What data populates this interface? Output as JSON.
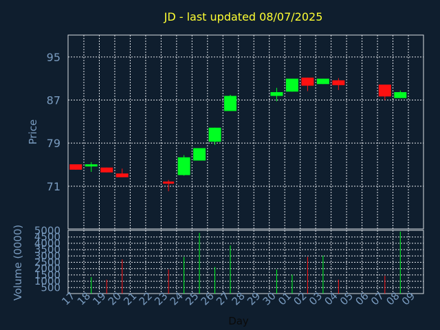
{
  "chart_data": {
    "type": "candlestick",
    "title": "JD - last updated 08/07/2025",
    "ylabel": "Price",
    "volume_label": "Volume (0000)",
    "xlabel": "Day",
    "ylim": [
      63,
      99
    ],
    "yticks": [
      71,
      79,
      87,
      95
    ],
    "volume_ylim": [
      0,
      5000
    ],
    "volume_ticks": [
      500,
      1000,
      1500,
      2000,
      2500,
      3000,
      3500,
      4000,
      4500,
      5000
    ],
    "x_ticks": [
      "17",
      "18",
      "19",
      "20",
      "21",
      "22",
      "23",
      "24",
      "25",
      "26",
      "27",
      "28",
      "29",
      "30",
      "01",
      "02",
      "03",
      "04",
      "05",
      "06",
      "07",
      "08",
      "09"
    ],
    "up_color": "#00ff22",
    "down_color": "#ff1111",
    "grid": true,
    "candles": [
      {
        "day": "17",
        "open": 75.0,
        "close": 74.0,
        "high": 75.0,
        "low": 74.0,
        "volume": 0
      },
      {
        "day": "18",
        "open": 74.6,
        "close": 75.0,
        "high": 75.4,
        "low": 73.6,
        "volume": 1300
      },
      {
        "day": "19",
        "open": 74.4,
        "close": 73.5,
        "high": 74.4,
        "low": 73.5,
        "volume": 1100
      },
      {
        "day": "20",
        "open": 73.3,
        "close": 72.6,
        "high": 74.2,
        "low": 72.6,
        "volume": 2700
      },
      {
        "day": "23",
        "open": 71.8,
        "close": 71.4,
        "high": 72.1,
        "low": 70.0,
        "volume": 1900
      },
      {
        "day": "24",
        "open": 73.0,
        "close": 76.3,
        "high": 76.7,
        "low": 72.9,
        "volume": 2900
      },
      {
        "day": "25",
        "open": 75.7,
        "close": 78.0,
        "high": 78.0,
        "low": 75.7,
        "volume": 4800
      },
      {
        "day": "26",
        "open": 79.2,
        "close": 81.8,
        "high": 81.8,
        "low": 78.6,
        "volume": 2100
      },
      {
        "day": "27",
        "open": 84.9,
        "close": 87.7,
        "high": 87.9,
        "low": 84.9,
        "volume": 3800
      },
      {
        "day": "30",
        "open": 87.7,
        "close": 88.4,
        "high": 89.2,
        "low": 86.7,
        "volume": 1900
      },
      {
        "day": "01",
        "open": 88.5,
        "close": 90.9,
        "high": 90.9,
        "low": 88.5,
        "volume": 1500
      },
      {
        "day": "02",
        "open": 91.1,
        "close": 89.6,
        "high": 91.1,
        "low": 88.6,
        "volume": 2900
      },
      {
        "day": "03",
        "open": 89.9,
        "close": 90.9,
        "high": 90.9,
        "low": 89.9,
        "volume": 3000
      },
      {
        "day": "04",
        "open": 90.6,
        "close": 89.7,
        "high": 91.0,
        "low": 88.8,
        "volume": 1100
      },
      {
        "day": "07",
        "open": 89.8,
        "close": 87.6,
        "high": 89.8,
        "low": 86.9,
        "volume": 1400
      },
      {
        "day": "08",
        "open": 87.3,
        "close": 88.4,
        "high": 88.7,
        "low": 87.3,
        "volume": 4900
      }
    ]
  }
}
